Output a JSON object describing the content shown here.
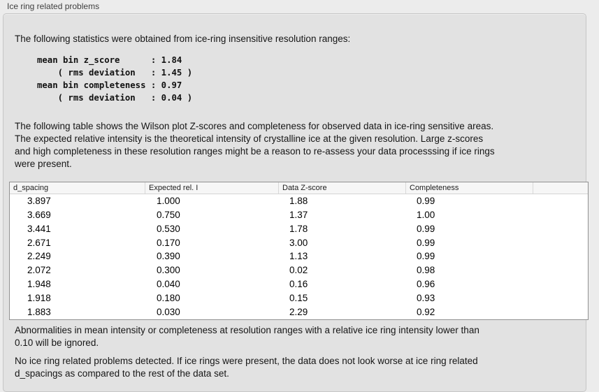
{
  "group": {
    "title": "Ice ring related problems"
  },
  "stats_section": {
    "intro": "The following statistics were obtained from ice-ring insensitive resolution ranges:",
    "block": "mean bin z_score      : 1.84\n    ( rms deviation   : 1.45 )\nmean bin completeness : 0.97\n    ( rms deviation   : 0.04 )",
    "values": {
      "mean_bin_z_score": "1.84",
      "z_score_rms_deviation": "1.45",
      "mean_bin_completeness": "0.97",
      "completeness_rms_deviation": "0.04"
    }
  },
  "table_section": {
    "description": "The following table shows the Wilson plot Z-scores and completeness for observed data in ice-ring sensitive areas.\nThe expected relative intensity is the theoretical intensity of crystalline ice at the given resolution. Large z-scores\nand high completeness in these resolution ranges might be a reason to re-assess your data processsing if ice rings\nwere present.",
    "columns": [
      "d_spacing",
      "Expected rel. I",
      "Data Z-score",
      "Completeness"
    ],
    "rows": [
      [
        "3.897",
        "1.000",
        "1.88",
        "0.99"
      ],
      [
        "3.669",
        "0.750",
        "1.37",
        "1.00"
      ],
      [
        "3.441",
        "0.530",
        "1.78",
        "0.99"
      ],
      [
        "2.671",
        "0.170",
        "3.00",
        "0.99"
      ],
      [
        "2.249",
        "0.390",
        "1.13",
        "0.99"
      ],
      [
        "2.072",
        "0.300",
        "0.02",
        "0.98"
      ],
      [
        "1.948",
        "0.040",
        "0.16",
        "0.96"
      ],
      [
        "1.918",
        "0.180",
        "0.15",
        "0.93"
      ],
      [
        "1.883",
        "0.030",
        "2.29",
        "0.92"
      ]
    ]
  },
  "notes": {
    "threshold": "Abnormalities in mean intensity or completeness at resolution ranges with a relative ice ring intensity lower than\n0.10 will be ignored.",
    "conclusion": "No ice ring related problems detected. If ice rings were present, the data does not look worse at ice ring related\nd_spacings as compared to the rest of the data set."
  },
  "colors": {
    "window_background": "#ececec",
    "groupbox_background": "#e2e2e2",
    "groupbox_border": "#c6c6c6",
    "table_background": "#ffffff",
    "table_border": "#919191",
    "table_header_background": "#f6f6f6",
    "text": "#161616"
  }
}
